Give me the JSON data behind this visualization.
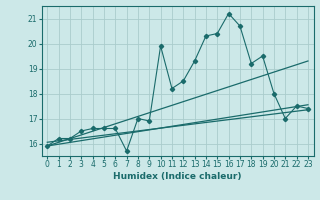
{
  "title": "",
  "xlabel": "Humidex (Indice chaleur)",
  "ylabel": "",
  "bg_color": "#cce8e8",
  "grid_color": "#aacccc",
  "line_color": "#1a6b6b",
  "x_data": [
    0,
    1,
    2,
    3,
    4,
    5,
    6,
    7,
    8,
    9,
    10,
    11,
    12,
    13,
    14,
    15,
    16,
    17,
    18,
    19,
    20,
    21,
    22,
    23
  ],
  "y_main": [
    15.9,
    16.2,
    16.2,
    16.5,
    16.6,
    16.6,
    16.6,
    15.7,
    17.0,
    16.9,
    19.9,
    18.2,
    18.5,
    19.3,
    20.3,
    20.4,
    21.2,
    20.7,
    19.2,
    19.5,
    18.0,
    17.0,
    17.5,
    17.4
  ],
  "trend1_x": [
    0,
    23
  ],
  "trend1_y": [
    15.9,
    19.3
  ],
  "trend2_x": [
    0,
    23
  ],
  "trend2_y": [
    15.9,
    17.55
  ],
  "trend3_x": [
    0,
    23
  ],
  "trend3_y": [
    16.05,
    17.35
  ],
  "ylim": [
    15.5,
    21.5
  ],
  "xlim": [
    -0.5,
    23.5
  ],
  "yticks": [
    16,
    17,
    18,
    19,
    20,
    21
  ],
  "xticks": [
    0,
    1,
    2,
    3,
    4,
    5,
    6,
    7,
    8,
    9,
    10,
    11,
    12,
    13,
    14,
    15,
    16,
    17,
    18,
    19,
    20,
    21,
    22,
    23
  ]
}
